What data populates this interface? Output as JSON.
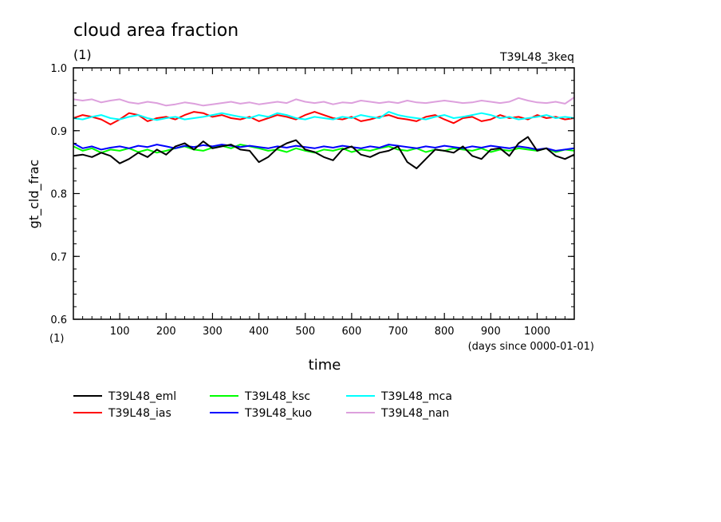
{
  "chart_data": {
    "type": "line",
    "title": "cloud area fraction",
    "title_unit": "(1)",
    "subtitle_right": "T39L48_3keq",
    "xlabel": "time",
    "xunit_note": "(days since 0000-01-01)",
    "ylabel": "gt_cld_frac",
    "yunit": "(1)",
    "xlim": [
      0,
      1080
    ],
    "ylim": [
      0.6,
      1.0
    ],
    "xticks": [
      100,
      200,
      300,
      400,
      500,
      600,
      700,
      800,
      900,
      1000
    ],
    "yticks": [
      0.6,
      0.7,
      0.8,
      0.9,
      1.0
    ],
    "ytick_labels": [
      "0.6",
      "0.7",
      "0.8",
      "0.9",
      "1.0"
    ],
    "grid": false,
    "legend_position": "bottom-left",
    "series": [
      {
        "name": "T39L48_eml",
        "color": "#000000",
        "x": [
          0,
          20,
          40,
          60,
          80,
          100,
          120,
          140,
          160,
          180,
          200,
          220,
          240,
          260,
          280,
          300,
          320,
          340,
          360,
          380,
          400,
          420,
          440,
          460,
          480,
          500,
          520,
          540,
          560,
          580,
          600,
          620,
          640,
          660,
          680,
          700,
          720,
          740,
          760,
          780,
          800,
          820,
          840,
          860,
          880,
          900,
          920,
          940,
          960,
          980,
          1000,
          1020,
          1040,
          1060,
          1080
        ],
        "y": [
          0.86,
          0.862,
          0.858,
          0.865,
          0.86,
          0.848,
          0.855,
          0.865,
          0.858,
          0.87,
          0.862,
          0.875,
          0.88,
          0.87,
          0.883,
          0.872,
          0.875,
          0.878,
          0.87,
          0.868,
          0.85,
          0.858,
          0.872,
          0.88,
          0.885,
          0.87,
          0.866,
          0.858,
          0.853,
          0.87,
          0.875,
          0.862,
          0.858,
          0.865,
          0.868,
          0.875,
          0.85,
          0.84,
          0.855,
          0.87,
          0.868,
          0.865,
          0.875,
          0.86,
          0.855,
          0.87,
          0.872,
          0.86,
          0.88,
          0.89,
          0.868,
          0.872,
          0.86,
          0.855,
          0.862
        ]
      },
      {
        "name": "T39L48_ias",
        "color": "#ff0000",
        "x": [
          0,
          20,
          40,
          60,
          80,
          100,
          120,
          140,
          160,
          180,
          200,
          220,
          240,
          260,
          280,
          300,
          320,
          340,
          360,
          380,
          400,
          420,
          440,
          460,
          480,
          500,
          520,
          540,
          560,
          580,
          600,
          620,
          640,
          660,
          680,
          700,
          720,
          740,
          760,
          780,
          800,
          820,
          840,
          860,
          880,
          900,
          920,
          940,
          960,
          980,
          1000,
          1020,
          1040,
          1060,
          1080
        ],
        "y": [
          0.92,
          0.925,
          0.922,
          0.918,
          0.91,
          0.918,
          0.928,
          0.925,
          0.915,
          0.92,
          0.922,
          0.918,
          0.925,
          0.93,
          0.928,
          0.922,
          0.925,
          0.92,
          0.918,
          0.922,
          0.915,
          0.92,
          0.925,
          0.922,
          0.918,
          0.925,
          0.93,
          0.925,
          0.92,
          0.918,
          0.922,
          0.915,
          0.918,
          0.922,
          0.925,
          0.92,
          0.918,
          0.915,
          0.922,
          0.925,
          0.918,
          0.912,
          0.92,
          0.922,
          0.915,
          0.918,
          0.925,
          0.92,
          0.922,
          0.918,
          0.925,
          0.92,
          0.922,
          0.918,
          0.92
        ]
      },
      {
        "name": "T39L48_ksc",
        "color": "#00ff00",
        "x": [
          0,
          20,
          40,
          60,
          80,
          100,
          120,
          140,
          160,
          180,
          200,
          220,
          240,
          260,
          280,
          300,
          320,
          340,
          360,
          380,
          400,
          420,
          440,
          460,
          480,
          500,
          520,
          540,
          560,
          580,
          600,
          620,
          640,
          660,
          680,
          700,
          720,
          740,
          760,
          780,
          800,
          820,
          840,
          860,
          880,
          900,
          920,
          940,
          960,
          980,
          1000,
          1020,
          1040,
          1060,
          1080
        ],
        "y": [
          0.875,
          0.868,
          0.872,
          0.865,
          0.87,
          0.868,
          0.872,
          0.866,
          0.87,
          0.865,
          0.868,
          0.872,
          0.875,
          0.87,
          0.868,
          0.873,
          0.876,
          0.872,
          0.878,
          0.875,
          0.872,
          0.868,
          0.87,
          0.866,
          0.872,
          0.868,
          0.865,
          0.87,
          0.868,
          0.872,
          0.866,
          0.87,
          0.868,
          0.872,
          0.875,
          0.87,
          0.868,
          0.872,
          0.866,
          0.87,
          0.868,
          0.872,
          0.87,
          0.868,
          0.872,
          0.866,
          0.87,
          0.868,
          0.872,
          0.87,
          0.868,
          0.872,
          0.866,
          0.87,
          0.868
        ]
      },
      {
        "name": "T39L48_kuo",
        "color": "#0000ff",
        "x": [
          0,
          20,
          40,
          60,
          80,
          100,
          120,
          140,
          160,
          180,
          200,
          220,
          240,
          260,
          280,
          300,
          320,
          340,
          360,
          380,
          400,
          420,
          440,
          460,
          480,
          500,
          520,
          540,
          560,
          580,
          600,
          620,
          640,
          660,
          680,
          700,
          720,
          740,
          760,
          780,
          800,
          820,
          840,
          860,
          880,
          900,
          920,
          940,
          960,
          980,
          1000,
          1020,
          1040,
          1060,
          1080
        ],
        "y": [
          0.88,
          0.872,
          0.875,
          0.87,
          0.873,
          0.875,
          0.872,
          0.876,
          0.874,
          0.878,
          0.875,
          0.872,
          0.876,
          0.874,
          0.877,
          0.875,
          0.878,
          0.876,
          0.874,
          0.876,
          0.874,
          0.872,
          0.875,
          0.873,
          0.876,
          0.874,
          0.872,
          0.875,
          0.873,
          0.876,
          0.874,
          0.872,
          0.875,
          0.873,
          0.878,
          0.876,
          0.874,
          0.872,
          0.875,
          0.873,
          0.876,
          0.874,
          0.872,
          0.875,
          0.873,
          0.876,
          0.874,
          0.872,
          0.875,
          0.873,
          0.87,
          0.872,
          0.868,
          0.87,
          0.872
        ]
      },
      {
        "name": "T39L48_mca",
        "color": "#00ffff",
        "x": [
          0,
          20,
          40,
          60,
          80,
          100,
          120,
          140,
          160,
          180,
          200,
          220,
          240,
          260,
          280,
          300,
          320,
          340,
          360,
          380,
          400,
          420,
          440,
          460,
          480,
          500,
          520,
          540,
          560,
          580,
          600,
          620,
          640,
          660,
          680,
          700,
          720,
          740,
          760,
          780,
          800,
          820,
          840,
          860,
          880,
          900,
          920,
          940,
          960,
          980,
          1000,
          1020,
          1040,
          1060,
          1080
        ],
        "y": [
          0.92,
          0.918,
          0.922,
          0.925,
          0.92,
          0.918,
          0.922,
          0.925,
          0.92,
          0.917,
          0.92,
          0.922,
          0.918,
          0.92,
          0.922,
          0.925,
          0.928,
          0.925,
          0.922,
          0.92,
          0.925,
          0.922,
          0.928,
          0.925,
          0.92,
          0.918,
          0.922,
          0.92,
          0.918,
          0.922,
          0.92,
          0.925,
          0.922,
          0.92,
          0.93,
          0.925,
          0.922,
          0.92,
          0.918,
          0.922,
          0.925,
          0.92,
          0.922,
          0.925,
          0.928,
          0.925,
          0.92,
          0.922,
          0.918,
          0.92,
          0.922,
          0.925,
          0.92,
          0.922,
          0.92
        ]
      },
      {
        "name": "T39L48_nan",
        "color": "#dda0dd",
        "x": [
          0,
          20,
          40,
          60,
          80,
          100,
          120,
          140,
          160,
          180,
          200,
          220,
          240,
          260,
          280,
          300,
          320,
          340,
          360,
          380,
          400,
          420,
          440,
          460,
          480,
          500,
          520,
          540,
          560,
          580,
          600,
          620,
          640,
          660,
          680,
          700,
          720,
          740,
          760,
          780,
          800,
          820,
          840,
          860,
          880,
          900,
          920,
          940,
          960,
          980,
          1000,
          1020,
          1040,
          1060,
          1080
        ],
        "y": [
          0.95,
          0.948,
          0.95,
          0.945,
          0.948,
          0.95,
          0.945,
          0.943,
          0.946,
          0.944,
          0.94,
          0.942,
          0.945,
          0.943,
          0.94,
          0.942,
          0.944,
          0.946,
          0.943,
          0.945,
          0.942,
          0.944,
          0.946,
          0.944,
          0.95,
          0.946,
          0.944,
          0.946,
          0.942,
          0.945,
          0.944,
          0.948,
          0.946,
          0.944,
          0.946,
          0.944,
          0.948,
          0.945,
          0.944,
          0.946,
          0.948,
          0.946,
          0.944,
          0.945,
          0.948,
          0.946,
          0.944,
          0.946,
          0.952,
          0.948,
          0.945,
          0.944,
          0.946,
          0.943,
          0.953
        ]
      }
    ]
  }
}
